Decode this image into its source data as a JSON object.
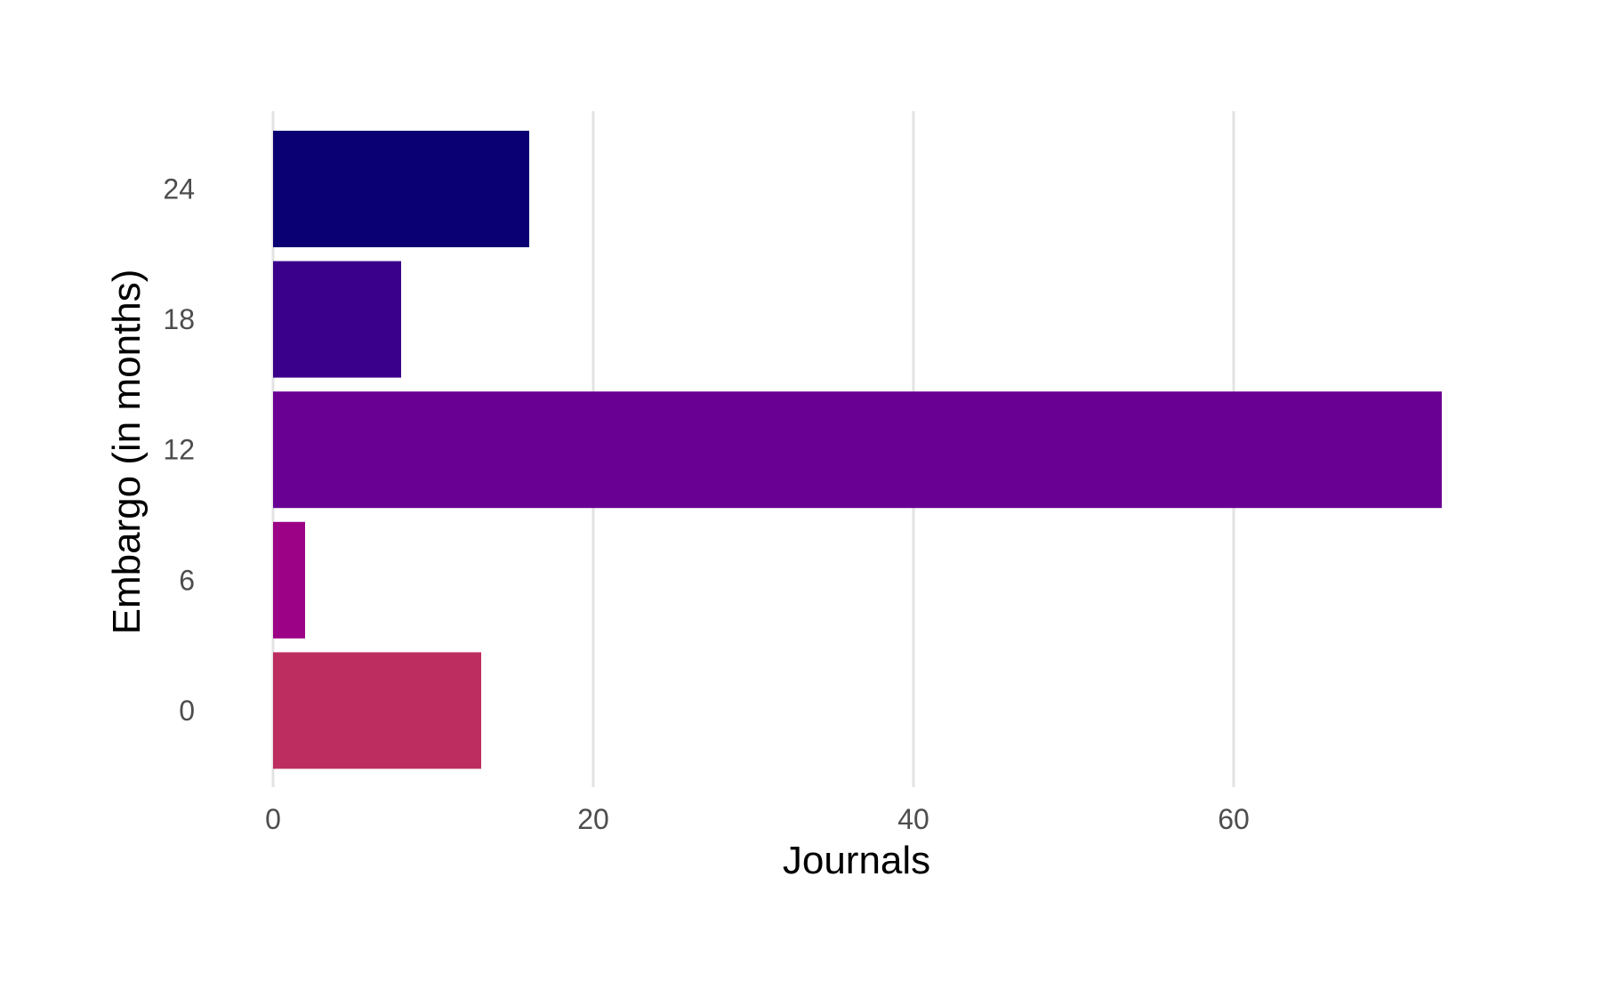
{
  "chart_data": {
    "type": "bar",
    "orientation": "horizontal",
    "categories": [
      "0",
      "6",
      "12",
      "18",
      "24"
    ],
    "values": [
      13,
      2,
      73,
      8,
      16
    ],
    "colors": [
      "#bd2d60",
      "#9c0285",
      "#6a0093",
      "#3b008b",
      "#0b0073"
    ],
    "title": "",
    "xlabel": "Journals",
    "ylabel": "Embargo (in months)",
    "xlim": [
      0,
      75
    ],
    "xticks": [
      0,
      20,
      40,
      60
    ],
    "grid": "vertical-major",
    "legend": "none"
  }
}
